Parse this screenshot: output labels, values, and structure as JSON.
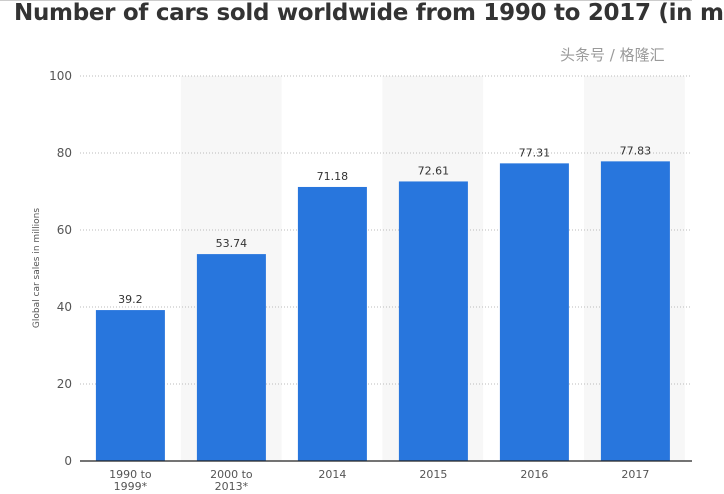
{
  "chart_data": {
    "type": "bar",
    "title": "Number of cars sold worldwide from 1990 to 2017 (in m",
    "xlabel": "",
    "ylabel": "Global car sales in millions",
    "categories": [
      "1990 to\n1999*",
      "2000 to\n2013*",
      "2014",
      "2015",
      "2016",
      "2017"
    ],
    "values": [
      39.2,
      53.74,
      71.18,
      72.61,
      77.31,
      77.83
    ],
    "data_labels": [
      "39.2",
      "53.74",
      "71.18",
      "72.61",
      "77.31",
      "77.83"
    ],
    "ylim": [
      0,
      100
    ],
    "yticks": [
      0,
      20,
      40,
      60,
      80,
      100
    ],
    "grid": true,
    "bar_color": "#2876dd"
  },
  "watermark": "头条号 / 格隆汇"
}
